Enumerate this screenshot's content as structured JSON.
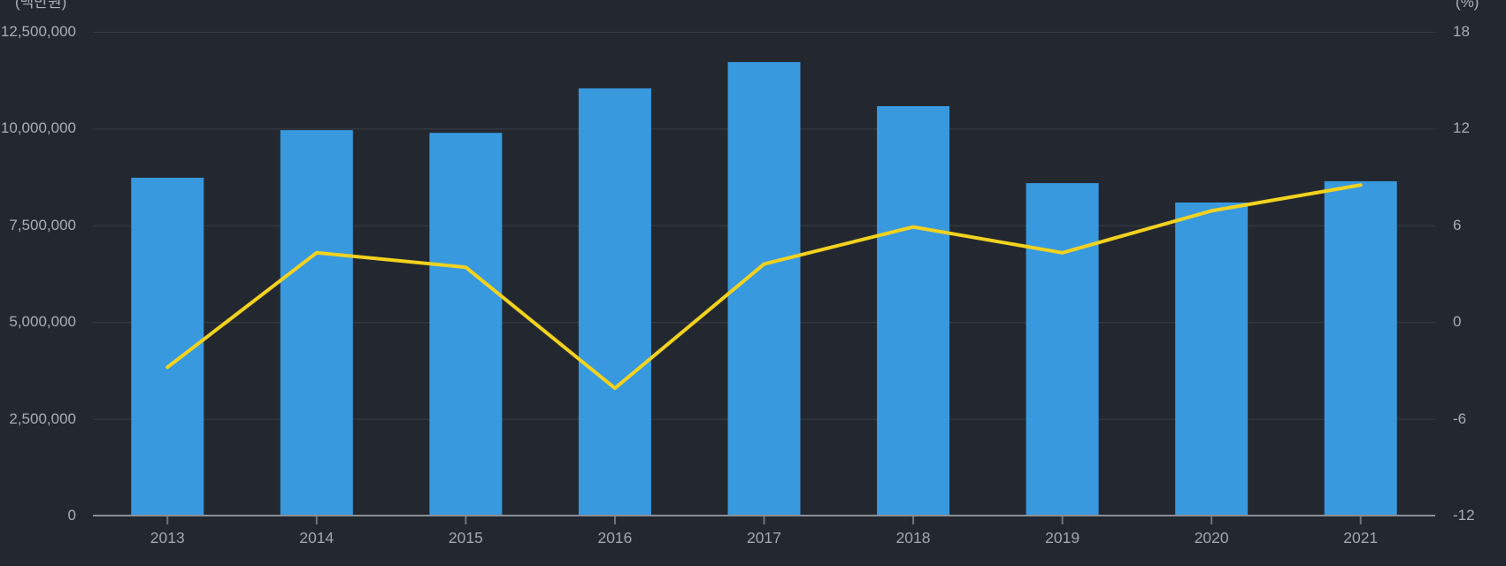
{
  "page": {
    "background_color": "#232830"
  },
  "chart_data": {
    "type": "bar+line",
    "categories": [
      "2013",
      "2014",
      "2015",
      "2016",
      "2017",
      "2018",
      "2019",
      "2020",
      "2021"
    ],
    "series": [
      {
        "id": "amount-bars",
        "type": "bar",
        "axis": "left",
        "color": "#3899df",
        "values": [
          8730000,
          9960000,
          9890000,
          11040000,
          11720000,
          10580000,
          8590000,
          8090000,
          8640000
        ]
      },
      {
        "id": "growth-line",
        "type": "line",
        "axis": "right",
        "color": "#f3d21e",
        "values": [
          -2.8,
          4.3,
          3.4,
          -4.1,
          3.6,
          5.9,
          4.3,
          6.9,
          8.5
        ]
      }
    ],
    "left_axis": {
      "unit_label": "(백만원)",
      "tick_labels": [
        "12,500,000",
        "10,000,000",
        "7,500,000",
        "5,000,000",
        "2,500,000",
        "0"
      ],
      "range": [
        0,
        12500000
      ]
    },
    "right_axis": {
      "unit_label": "(%)",
      "tick_labels": [
        "18",
        "12",
        "6",
        "0",
        "-6",
        "-12"
      ],
      "range": [
        -12,
        18
      ]
    },
    "x_axis": {
      "tick_labels": [
        "2013",
        "2014",
        "2015",
        "2016",
        "2017",
        "2018",
        "2019",
        "2020",
        "2021"
      ]
    },
    "grid": true,
    "legend": false,
    "colors": {
      "gridline": "#3a3e46",
      "axis_line": "#8a8e95",
      "axis_tick": "#70747b"
    }
  }
}
